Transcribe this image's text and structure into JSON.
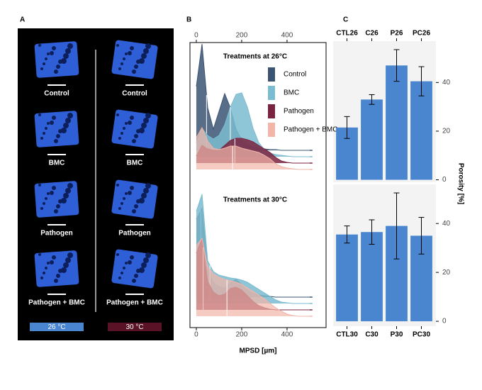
{
  "panel_a": {
    "label": "A",
    "columns": [
      {
        "labels": [
          "Control",
          "BMC",
          "Pathogen",
          "Pathogen + BMC"
        ],
        "temperature": "26 °C",
        "color": "#4a86d0"
      },
      {
        "labels": [
          "Control",
          "BMC",
          "Pathogen",
          "Pathogen + BMC"
        ],
        "temperature": "30 °C",
        "color": "#5a1326"
      }
    ]
  },
  "chart_data": [
    {
      "type": "ridge",
      "panel_label": "B",
      "title": "Treatments at 26°C",
      "xlim": [
        -28,
        572
      ],
      "xticks": [
        0,
        200,
        400
      ],
      "xtick_side": "top",
      "x": [
        0,
        25,
        50,
        75,
        100,
        125,
        150,
        175,
        200,
        225,
        250,
        275,
        300,
        325,
        350,
        375,
        400,
        425,
        450,
        475,
        500
      ],
      "series": [
        {
          "name": "Control",
          "color": "#3b5473",
          "median": 45,
          "values": [
            90,
            150,
            60,
            30,
            55,
            80,
            60,
            30,
            15,
            8,
            5,
            3,
            2,
            1,
            1,
            0,
            0,
            0,
            0,
            0,
            0
          ]
        },
        {
          "name": "BMC",
          "color": "#7bbcd0",
          "median": 150,
          "values": [
            20,
            40,
            30,
            25,
            30,
            45,
            70,
            88,
            90,
            70,
            40,
            20,
            10,
            5,
            3,
            2,
            1,
            0,
            0,
            0,
            0
          ]
        },
        {
          "name": "Pathogen",
          "color": "#7a2540",
          "median": 170,
          "values": [
            10,
            25,
            20,
            18,
            18,
            25,
            32,
            35,
            35,
            33,
            30,
            25,
            20,
            15,
            8,
            3,
            1,
            0,
            0,
            0,
            0
          ]
        },
        {
          "name": "Pathogen + BMC",
          "color": "#f2b5a8",
          "median": 160,
          "values": [
            45,
            59,
            40,
            30,
            28,
            30,
            33,
            33,
            30,
            28,
            26,
            24,
            20,
            15,
            8,
            4,
            2,
            1,
            0,
            0,
            0
          ]
        }
      ]
    },
    {
      "type": "ridge",
      "title": "Treatments at 30°C",
      "xlim": [
        -28,
        572
      ],
      "xticks": [
        0,
        200,
        400
      ],
      "xtick_side": "bottom",
      "x_label": "MPSD [µm]",
      "x": [
        0,
        25,
        50,
        75,
        100,
        125,
        150,
        175,
        200,
        225,
        250,
        275,
        300,
        325,
        350,
        375,
        400,
        425,
        450,
        475,
        500
      ],
      "series": [
        {
          "name": "Control",
          "color": "#3b5473",
          "median": 20,
          "values": [
            110,
            125,
            40,
            20,
            15,
            12,
            20,
            25,
            18,
            10,
            5,
            3,
            2,
            1,
            0,
            0,
            0,
            0,
            0,
            0,
            0
          ]
        },
        {
          "name": "BMC",
          "color": "#7bbcd0",
          "median": 60,
          "values": [
            130,
            154,
            60,
            45,
            40,
            38,
            36,
            35,
            33,
            30,
            25,
            20,
            15,
            10,
            5,
            2,
            1,
            0,
            0,
            0,
            0
          ]
        },
        {
          "name": "Pathogen",
          "color": "#7a2540",
          "median": 30,
          "values": [
            80,
            100,
            40,
            25,
            20,
            22,
            30,
            32,
            28,
            20,
            12,
            6,
            3,
            1,
            0,
            0,
            0,
            0,
            0,
            0,
            0
          ]
        },
        {
          "name": "Pathogen + BMC",
          "color": "#f2b5a8",
          "median": 135,
          "values": [
            100,
            110,
            70,
            60,
            55,
            52,
            50,
            48,
            45,
            40,
            35,
            30,
            25,
            18,
            12,
            7,
            3,
            1,
            0,
            0,
            0
          ]
        }
      ]
    },
    {
      "type": "bar",
      "panel_label": "C",
      "categories": [
        "CTL26",
        "C26",
        "P26",
        "PC26"
      ],
      "category_side": "top",
      "values": [
        21.5,
        33,
        47,
        40.5
      ],
      "errors": [
        4.5,
        2,
        6.5,
        6
      ],
      "color": "#4a86d0",
      "ylim": [
        -1,
        57
      ],
      "yticks": [
        0,
        20,
        40
      ],
      "y_label": "Porosity [%]"
    },
    {
      "type": "bar",
      "categories": [
        "CTL30",
        "C30",
        "P30",
        "PC30"
      ],
      "category_side": "bottom",
      "values": [
        35.5,
        36.5,
        39,
        35
      ],
      "errors": [
        3.5,
        5,
        13.5,
        7.5
      ],
      "color": "#4a86d0",
      "ylim": [
        -2,
        56
      ],
      "yticks": [
        0,
        20,
        40
      ]
    }
  ]
}
